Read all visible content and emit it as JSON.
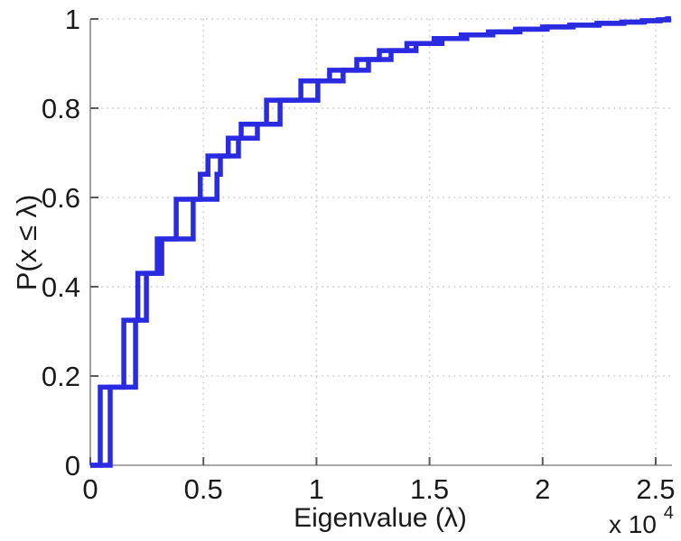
{
  "chart_data": {
    "type": "line",
    "subtype": "ecdf-step",
    "title": "",
    "xlabel": "Eigenvalue (λ)",
    "ylabel": "P(x ≤ λ)",
    "x_multiplier_base": "x 10",
    "x_multiplier_exp": "4",
    "xlim": [
      0,
      2.568
    ],
    "ylim": [
      0,
      1
    ],
    "x_ticks": [
      0,
      0.5,
      1,
      1.5,
      2,
      2.5
    ],
    "x_tick_labels": [
      "0",
      "0.5",
      "1",
      "1.5",
      "2",
      "2.5"
    ],
    "y_ticks": [
      0,
      0.2,
      0.4,
      0.6,
      0.8,
      1
    ],
    "y_tick_labels": [
      "0",
      "0.2",
      "0.4",
      "0.6",
      "0.8",
      "1"
    ],
    "grid": true,
    "legend": null,
    "line_color": "#2a2ae0",
    "line_width": 5.5,
    "axis_color": "#8a8a8a",
    "tick_color": "#5a5a5a",
    "grid_color": "#c6c6c6",
    "text_color": "#1a1a1a",
    "series": [
      {
        "name": "ecdf-step-curve-left",
        "points": [
          [
            0.044,
            0.175
          ],
          [
            0.148,
            0.325
          ],
          [
            0.21,
            0.43
          ],
          [
            0.296,
            0.507
          ],
          [
            0.38,
            0.596
          ],
          [
            0.486,
            0.652
          ],
          [
            0.52,
            0.693
          ],
          [
            0.61,
            0.733
          ],
          [
            0.667,
            0.764
          ],
          [
            0.779,
            0.818
          ],
          [
            0.931,
            0.861
          ],
          [
            1.058,
            0.885
          ],
          [
            1.178,
            0.909
          ],
          [
            1.278,
            0.929
          ],
          [
            1.4,
            0.945
          ],
          [
            1.52,
            0.956
          ],
          [
            1.64,
            0.964
          ],
          [
            1.76,
            0.971
          ],
          [
            1.88,
            0.977
          ],
          [
            2.0,
            0.982
          ],
          [
            2.12,
            0.986
          ],
          [
            2.24,
            0.99
          ],
          [
            2.35,
            0.993
          ],
          [
            2.44,
            0.996
          ],
          [
            2.51,
            0.998
          ],
          [
            2.55,
            1.0
          ]
        ]
      },
      {
        "name": "ecdf-step-curve-right",
        "points": [
          [
            0.088,
            0.175
          ],
          [
            0.2,
            0.325
          ],
          [
            0.248,
            0.43
          ],
          [
            0.316,
            0.507
          ],
          [
            0.455,
            0.596
          ],
          [
            0.56,
            0.652
          ],
          [
            0.575,
            0.693
          ],
          [
            0.655,
            0.733
          ],
          [
            0.739,
            0.764
          ],
          [
            0.839,
            0.818
          ],
          [
            1.006,
            0.861
          ],
          [
            1.118,
            0.885
          ],
          [
            1.23,
            0.909
          ],
          [
            1.33,
            0.929
          ],
          [
            1.44,
            0.945
          ],
          [
            1.555,
            0.956
          ],
          [
            1.665,
            0.964
          ],
          [
            1.78,
            0.971
          ],
          [
            1.9,
            0.977
          ],
          [
            2.02,
            0.982
          ],
          [
            2.135,
            0.986
          ],
          [
            2.25,
            0.99
          ],
          [
            2.36,
            0.993
          ],
          [
            2.45,
            0.996
          ],
          [
            2.52,
            0.998
          ],
          [
            2.558,
            1.0
          ]
        ]
      }
    ]
  }
}
